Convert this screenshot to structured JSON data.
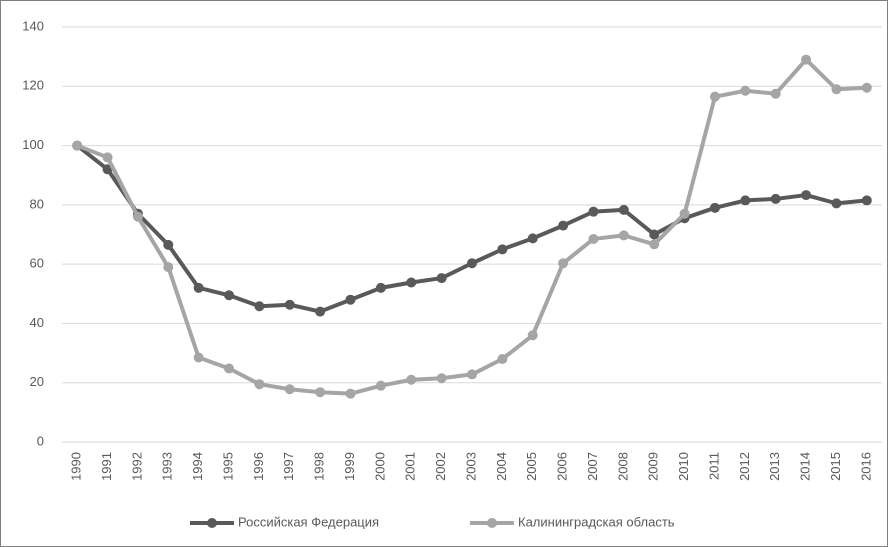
{
  "chart_data": {
    "type": "line",
    "categories": [
      "1990",
      "1991",
      "1992",
      "1993",
      "1994",
      "1995",
      "1996",
      "1997",
      "1998",
      "1999",
      "2000",
      "2001",
      "2002",
      "2003",
      "2004",
      "2005",
      "2006",
      "2007",
      "2008",
      "2009",
      "2010",
      "2011",
      "2012",
      "2013",
      "2014",
      "2015",
      "2016"
    ],
    "series": [
      {
        "name": "Российская Федерация",
        "color": "#595959",
        "values": [
          100,
          92,
          77,
          66.5,
          52,
          49.5,
          45.8,
          46.3,
          44,
          48,
          52,
          53.8,
          55.3,
          60.3,
          65,
          68.7,
          73,
          77.7,
          78.3,
          70,
          75.5,
          79,
          81.5,
          82,
          83.3,
          80.5,
          81.5
        ]
      },
      {
        "name": "Калининградская область",
        "color": "#a5a5a5",
        "values": [
          100,
          96,
          76,
          59,
          28.5,
          24.8,
          19.5,
          17.8,
          16.8,
          16.3,
          19,
          21,
          21.5,
          22.8,
          28,
          36,
          60.3,
          68.5,
          69.7,
          66.7,
          77,
          116.5,
          118.5,
          117.5,
          129,
          119,
          119.5
        ]
      }
    ],
    "ylim": [
      0,
      140
    ],
    "yticks": [
      0,
      20,
      40,
      60,
      80,
      100,
      120,
      140
    ],
    "grid": true,
    "legend": "bottom"
  }
}
